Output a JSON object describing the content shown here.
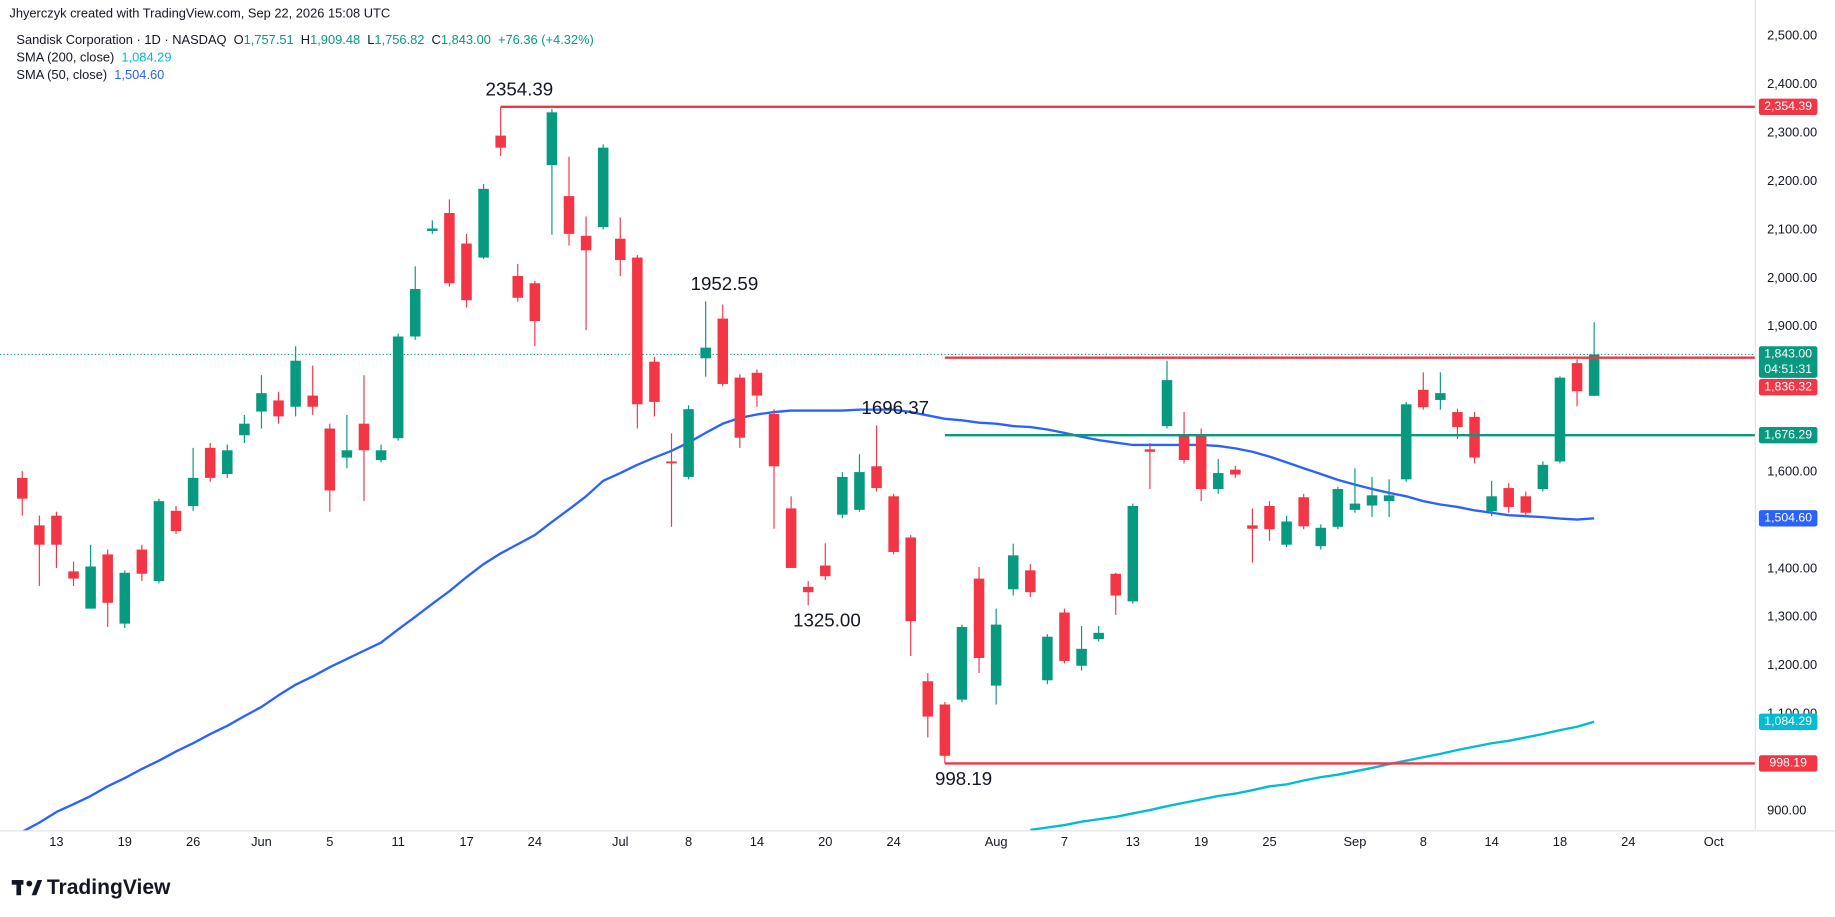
{
  "chart_data": {
    "type": "candlestick",
    "header": "Jhyerczyk created with TradingView.com, Sep 22, 2026 15:08 UTC",
    "symbol": "Sandisk Corporation · 1D · NASDAQ",
    "ohlc": [
      {
        "key": "O",
        "label": "1,757.51"
      },
      {
        "key": "H",
        "label": "1,909.48"
      },
      {
        "key": "L",
        "label": "1,756.82"
      },
      {
        "key": "C",
        "label": "1,843.00"
      }
    ],
    "change": "+76.36 (+4.32%)",
    "footer": "TradingView",
    "up_color": "#089981",
    "down_color": "#f23645",
    "categories": [
      null,
      null,
      "13",
      null,
      null,
      null,
      "19",
      null,
      null,
      null,
      "26",
      null,
      null,
      null,
      "Jun",
      null,
      null,
      null,
      "5",
      null,
      null,
      null,
      "11",
      null,
      null,
      null,
      "17",
      null,
      null,
      null,
      "24",
      null,
      null,
      null,
      null,
      "Jul",
      null,
      null,
      null,
      "8",
      null,
      null,
      null,
      "14",
      null,
      null,
      null,
      "20",
      null,
      null,
      null,
      "24",
      null,
      null,
      null,
      null,
      null,
      "Aug",
      null,
      null,
      null,
      "7",
      null,
      null,
      null,
      "13",
      null,
      null,
      null,
      "19",
      null,
      null,
      null,
      "25",
      null,
      null,
      null,
      null,
      "Sep",
      null,
      null,
      null,
      "8",
      null,
      null,
      null,
      "14",
      null,
      null,
      null,
      "18",
      null,
      null,
      null,
      "24",
      null,
      null,
      null,
      null,
      "Oct",
      null
    ],
    "open": [
      1588,
      1490,
      1510,
      1395,
      1318,
      1430,
      1287,
      1440,
      1375,
      1520,
      1530,
      1650,
      1596,
      1676,
      1725,
      1748,
      1735,
      1758,
      1690,
      1630,
      1700,
      1625,
      1670,
      1880,
      2098,
      2135,
      2072,
      2043,
      2295,
      2005,
      1990,
      2234,
      2170,
      2088,
      2106,
      2082,
      2043,
      1828,
      1622,
      1590,
      1835,
      1917,
      1795,
      1805,
      1720,
      1525,
      1363,
      1407,
      1512,
      1522,
      1612,
      1550,
      1465,
      1168,
      1120,
      1130,
      1380,
      1159,
      1358,
      1397,
      1170,
      1310,
      1200,
      1255,
      1390,
      1333,
      1647,
      1695,
      1675,
      1678,
      1565,
      1605,
      1490,
      1530,
      1450,
      1548,
      1447,
      1487,
      1522,
      1531,
      1540,
      1585,
      1770,
      1749,
      1724,
      1714,
      1519,
      1567,
      1550,
      1565,
      1622,
      1825,
      1757.51,
      null,
      null,
      null,
      null,
      null,
      null,
      null,
      null
    ],
    "high": [
      1602,
      1510,
      1518,
      1415,
      1450,
      1440,
      1397,
      1450,
      1545,
      1530,
      1650,
      1660,
      1657,
      1718,
      1800,
      1766,
      1860,
      1820,
      1700,
      1718,
      1800,
      1657,
      1886,
      2025,
      2120,
      2163,
      2092,
      2195,
      2354.39,
      2030,
      1995,
      2350,
      2251,
      2128,
      2277,
      2126,
      2048,
      1838,
      1680,
      1738,
      1952.59,
      1946,
      1802,
      1812,
      1730,
      1550,
      1375,
      1453,
      1600,
      1637,
      1696.37,
      1555,
      1470,
      1185,
      1125,
      1285,
      1404,
      1318,
      1452,
      1410,
      1265,
      1318,
      1282,
      1282,
      1392,
      1535,
      1660,
      1830,
      1724,
      1690,
      1627,
      1613,
      1525,
      1540,
      1510,
      1555,
      1492,
      1570,
      1608,
      1590,
      1585,
      1745,
      1806,
      1806,
      1731,
      1724,
      1582,
      1577,
      1560,
      1622,
      1798,
      1833,
      1909.48,
      null,
      null,
      null,
      null,
      null,
      null,
      null,
      null
    ],
    "low": [
      1510,
      1365,
      1402,
      1365,
      1318,
      1280,
      1278,
      1375,
      1370,
      1472,
      1520,
      1580,
      1588,
      1660,
      1690,
      1700,
      1715,
      1718,
      1518,
      1608,
      1540,
      1620,
      1665,
      1873,
      2092,
      1983,
      1940,
      2040,
      2253,
      1952,
      1860,
      2090,
      2068,
      1893,
      2101,
      2005,
      1690,
      1715,
      1487,
      1585,
      1797,
      1777,
      1650,
      1735,
      1483,
      1402,
      1325,
      1377,
      1505,
      1518,
      1560,
      1430,
      1220,
      1052,
      998.19,
      1125,
      1185,
      1120,
      1345,
      1342,
      1162,
      1205,
      1190,
      1250,
      1305,
      1328,
      1565,
      1690,
      1618,
      1540,
      1555,
      1588,
      1413,
      1458,
      1445,
      1482,
      1440,
      1482,
      1516,
      1507,
      1507,
      1580,
      1729,
      1729,
      1668,
      1618,
      1509,
      1516,
      1511,
      1560,
      1618,
      1736,
      1756.82,
      null,
      null,
      null,
      null,
      null,
      null,
      null,
      null
    ],
    "close": [
      1545,
      1450,
      1450,
      1380,
      1405,
      1330,
      1392,
      1390,
      1540,
      1478,
      1588,
      1588,
      1645,
      1700,
      1763,
      1715,
      1830,
      1735,
      1562,
      1645,
      1645,
      1645,
      1880,
      1978,
      2103,
      1990,
      1955,
      2185,
      2270,
      1960,
      1912,
      2343,
      2092,
      2058,
      2270,
      2038,
      1740,
      1745,
      1618,
      1730,
      1857,
      1782,
      1671,
      1758,
      1612,
      1402,
      1352,
      1385,
      1590,
      1600,
      1567,
      1435,
      1292,
      1095,
      1014,
      1280,
      1216,
      1285,
      1428,
      1352,
      1260,
      1210,
      1235,
      1268,
      1345,
      1530,
      1642,
      1790,
      1625,
      1565,
      1598,
      1595,
      1483,
      1482,
      1498,
      1488,
      1485,
      1565,
      1535,
      1552,
      1552,
      1740,
      1734,
      1763,
      1693,
      1630,
      1550,
      1528,
      1516,
      1615,
      1795,
      1767,
      1843,
      null,
      null,
      null,
      null,
      null,
      null,
      null,
      null
    ],
    "last_price_label": "1,843.00",
    "countdown": "04:51:31",
    "series": [
      {
        "name": "SMA (200, close)",
        "color": "#00bcd4",
        "last_label": "1,084.29",
        "values": [
          null,
          null,
          null,
          null,
          null,
          null,
          null,
          null,
          null,
          null,
          null,
          null,
          null,
          null,
          null,
          null,
          null,
          null,
          null,
          null,
          null,
          null,
          null,
          null,
          null,
          null,
          null,
          null,
          null,
          null,
          null,
          null,
          null,
          null,
          null,
          null,
          null,
          null,
          null,
          null,
          null,
          null,
          null,
          null,
          null,
          null,
          null,
          null,
          null,
          null,
          null,
          null,
          null,
          null,
          null,
          null,
          null,
          null,
          null,
          861,
          866,
          871,
          878,
          883,
          888,
          895,
          902,
          910,
          917,
          924,
          931,
          936,
          943,
          951,
          955,
          963,
          970,
          975,
          982,
          989,
          997,
          1004,
          1011,
          1018,
          1026,
          1033,
          1040,
          1045,
          1052,
          1059,
          1067,
          1074,
          1084.29,
          null,
          null,
          null,
          null,
          null,
          null,
          null,
          null
        ]
      },
      {
        "name": "SMA (50, close)",
        "color": "#2962ff",
        "last_label": "1,504.60",
        "values": [
          857,
          876,
          898,
          914,
          931,
          951,
          968,
          987,
          1004,
          1023,
          1040,
          1059,
          1076,
          1096,
          1115,
          1139,
          1161,
          1178,
          1197,
          1214,
          1231,
          1248,
          1275,
          1301,
          1328,
          1354,
          1383,
          1410,
          1432,
          1451,
          1470,
          1497,
          1523,
          1550,
          1582,
          1598,
          1615,
          1630,
          1644,
          1661,
          1681,
          1700,
          1712,
          1719,
          1724,
          1727,
          1727,
          1727,
          1727,
          1729,
          1729,
          1729,
          1724,
          1717,
          1710,
          1707,
          1702,
          1700,
          1695,
          1693,
          1688,
          1681,
          1673,
          1666,
          1661,
          1656,
          1656,
          1656,
          1656,
          1656,
          1654,
          1649,
          1642,
          1632,
          1620,
          1608,
          1596,
          1584,
          1574,
          1565,
          1557,
          1550,
          1540,
          1533,
          1528,
          1521,
          1516,
          1511,
          1509,
          1507,
          1504,
          1502,
          1504.6,
          null,
          null,
          null,
          null,
          null,
          null,
          null,
          null
        ]
      }
    ],
    "levels": [
      {
        "value": 2354.39,
        "label": "2,354.39",
        "color": "#f23645"
      },
      {
        "value": 1836.32,
        "label": "1,836.32",
        "color": "#f23645"
      },
      {
        "value": 1676.29,
        "label": "1,676.29",
        "color": "#089981"
      },
      {
        "value": 998.19,
        "label": "998.19",
        "color": "#f23645"
      }
    ],
    "annotations": [
      {
        "value": 2354.39,
        "label": "2354.39"
      },
      {
        "value": 1952.59,
        "label": "1952.59"
      },
      {
        "value": 1696.37,
        "label": "1696.37"
      },
      {
        "value": 1325,
        "label": "1325.00"
      },
      {
        "value": 998.19,
        "label": "998.19"
      }
    ],
    "ylim": [
      859,
      2575
    ],
    "yticks": [
      {
        "value": 900,
        "label": "900.00"
      },
      {
        "value": 1100,
        "label": "1,100.00"
      },
      {
        "value": 1200,
        "label": "1,200.00"
      },
      {
        "value": 1300,
        "label": "1,300.00"
      },
      {
        "value": 1400,
        "label": "1,400.00"
      },
      {
        "value": 1600,
        "label": "1,600.00"
      },
      {
        "value": 1900,
        "label": "1,900.00"
      },
      {
        "value": 2000,
        "label": "2,000.00"
      },
      {
        "value": 2100,
        "label": "2,100.00"
      },
      {
        "value": 2200,
        "label": "2,200.00"
      },
      {
        "value": 2300,
        "label": "2,300.00"
      },
      {
        "value": 2400,
        "label": "2,400.00"
      },
      {
        "value": 2500,
        "label": "2,500.00"
      }
    ],
    "grid": false
  }
}
